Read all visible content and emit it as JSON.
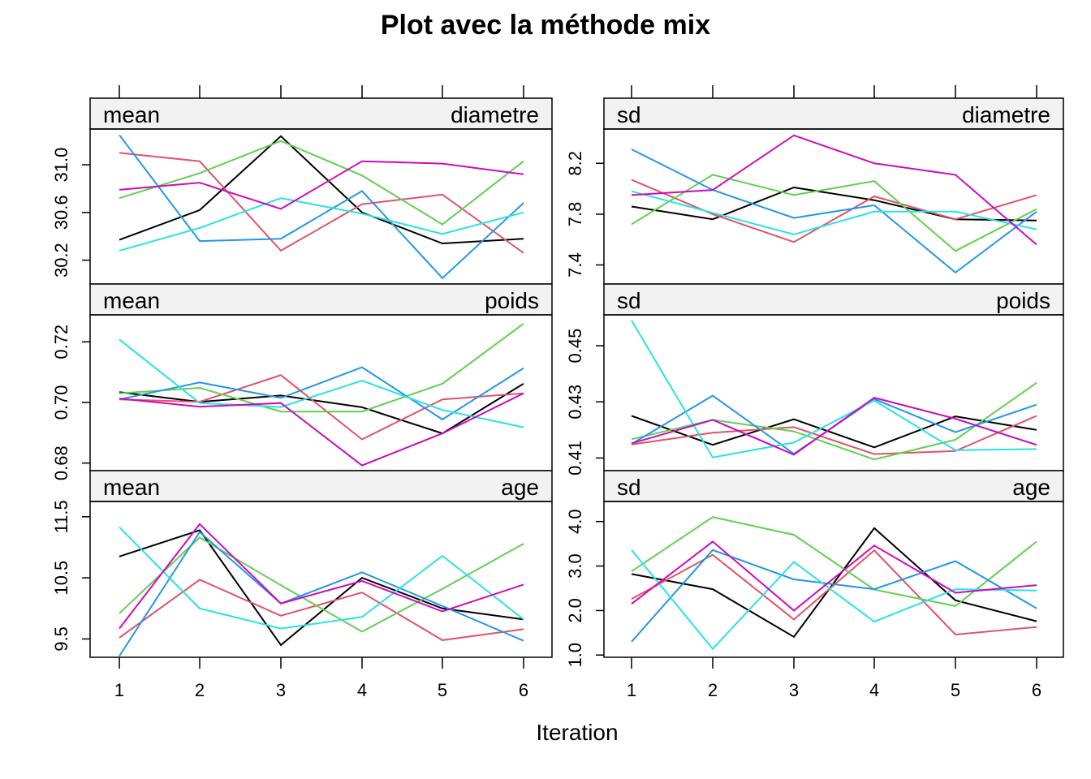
{
  "chart_data": {
    "type": "line",
    "title": "Plot avec la méthode mix",
    "xlabel": "Iteration",
    "x": [
      1,
      2,
      3,
      4,
      5,
      6
    ],
    "series_colors": [
      "#000000",
      "#DF536B",
      "#61D04F",
      "#2297E6",
      "#28E2E5",
      "#CD0BBC"
    ],
    "panels": [
      {
        "stat": "mean",
        "variable": "diametre",
        "yticks": [
          30.2,
          30.6,
          31.0
        ],
        "ylim": [
          30.0,
          31.3
        ],
        "series": [
          {
            "values": [
              30.37,
              30.62,
              31.24,
              30.6,
              30.34,
              30.38
            ]
          },
          {
            "values": [
              31.1,
              31.03,
              30.28,
              30.67,
              30.75,
              30.26
            ]
          },
          {
            "values": [
              30.72,
              30.93,
              31.2,
              30.91,
              30.5,
              31.03
            ]
          },
          {
            "values": [
              31.25,
              30.36,
              30.38,
              30.78,
              30.05,
              30.68
            ]
          },
          {
            "values": [
              30.28,
              30.47,
              30.72,
              30.59,
              30.42,
              30.6
            ]
          },
          {
            "values": [
              30.79,
              30.85,
              30.63,
              31.03,
              31.01,
              30.92
            ]
          }
        ]
      },
      {
        "stat": "sd",
        "variable": "diametre",
        "yticks": [
          7.4,
          7.8,
          8.2
        ],
        "ylim": [
          7.25,
          8.47
        ],
        "series": [
          {
            "values": [
              7.86,
              7.76,
              8.01,
              7.91,
              7.76,
              7.75
            ]
          },
          {
            "values": [
              8.07,
              7.8,
              7.58,
              7.94,
              7.76,
              7.95
            ]
          },
          {
            "values": [
              7.72,
              8.11,
              7.95,
              8.06,
              7.51,
              7.84
            ]
          },
          {
            "values": [
              8.31,
              7.99,
              7.77,
              7.87,
              7.34,
              7.82
            ]
          },
          {
            "values": [
              7.98,
              7.81,
              7.64,
              7.82,
              7.82,
              7.68
            ]
          },
          {
            "values": [
              7.95,
              7.99,
              8.42,
              8.2,
              8.11,
              7.56
            ]
          }
        ]
      },
      {
        "stat": "mean",
        "variable": "poids",
        "yticks": [
          0.68,
          0.7,
          0.72
        ],
        "ylim": [
          0.6775,
          0.7289
        ],
        "series": [
          {
            "values": [
              0.7034,
              0.7002,
              0.7023,
              0.6984,
              0.6898,
              0.7062
            ]
          },
          {
            "values": [
              0.701,
              0.7002,
              0.709,
              0.6878,
              0.701,
              0.703
            ]
          },
          {
            "values": [
              0.703,
              0.7048,
              0.697,
              0.697,
              0.7062,
              0.726
            ]
          },
          {
            "values": [
              0.701,
              0.7066,
              0.7015,
              0.7116,
              0.6944,
              0.7113
            ]
          },
          {
            "values": [
              0.7208,
              0.6998,
              0.6985,
              0.7072,
              0.6975,
              0.6918
            ]
          },
          {
            "values": [
              0.7013,
              0.6986,
              0.6998,
              0.6792,
              0.6898,
              0.703
            ]
          }
        ]
      },
      {
        "stat": "sd",
        "variable": "poids",
        "yticks": [
          0.41,
          0.43,
          0.45
        ],
        "ylim": [
          0.4055,
          0.461
        ],
        "series": [
          {
            "values": [
              0.425,
              0.4147,
              0.4238,
              0.4138,
              0.4248,
              0.42
            ]
          },
          {
            "values": [
              0.4148,
              0.419,
              0.421,
              0.4114,
              0.4125,
              0.425
            ]
          },
          {
            "values": [
              0.4167,
              0.4236,
              0.4195,
              0.4095,
              0.4165,
              0.4368
            ]
          },
          {
            "values": [
              0.415,
              0.4322,
              0.4115,
              0.431,
              0.4192,
              0.429
            ]
          },
          {
            "values": [
              0.459,
              0.4102,
              0.4155,
              0.4305,
              0.4128,
              0.4132
            ]
          },
          {
            "values": [
              0.4152,
              0.4236,
              0.4112,
              0.4315,
              0.424,
              0.4147
            ]
          }
        ]
      },
      {
        "stat": "mean",
        "variable": "age",
        "yticks": [
          9.5,
          10.5,
          11.5
        ],
        "ylim": [
          9.2,
          11.75
        ],
        "series": [
          {
            "values": [
              10.85,
              11.28,
              9.4,
              10.5,
              10.0,
              9.82
            ]
          },
          {
            "values": [
              9.52,
              10.47,
              9.88,
              10.26,
              9.48,
              9.66
            ]
          },
          {
            "values": [
              9.92,
              11.16,
              10.38,
              9.62,
              10.32,
              11.06
            ]
          },
          {
            "values": [
              9.22,
              11.25,
              10.08,
              10.59,
              10.04,
              9.47
            ]
          },
          {
            "values": [
              11.33,
              10.0,
              9.67,
              9.86,
              10.86,
              9.82
            ]
          },
          {
            "values": [
              9.67,
              11.38,
              10.08,
              10.45,
              9.95,
              10.39
            ]
          }
        ]
      },
      {
        "stat": "sd",
        "variable": "age",
        "yticks": [
          1.0,
          2.0,
          3.0,
          4.0
        ],
        "ylim": [
          0.95,
          4.45
        ],
        "series": [
          {
            "values": [
              2.82,
              2.48,
              1.41,
              3.85,
              2.23,
              1.76
            ]
          },
          {
            "values": [
              2.26,
              3.25,
              1.8,
              3.35,
              1.46,
              1.63
            ]
          },
          {
            "values": [
              2.88,
              4.1,
              3.7,
              2.47,
              2.1,
              3.55
            ]
          },
          {
            "values": [
              1.3,
              3.36,
              2.7,
              2.48,
              3.11,
              2.05
            ]
          },
          {
            "values": [
              3.36,
              1.14,
              3.09,
              1.75,
              2.48,
              2.45
            ]
          },
          {
            "values": [
              2.15,
              3.55,
              2.0,
              3.46,
              2.4,
              2.57
            ]
          }
        ]
      }
    ]
  }
}
